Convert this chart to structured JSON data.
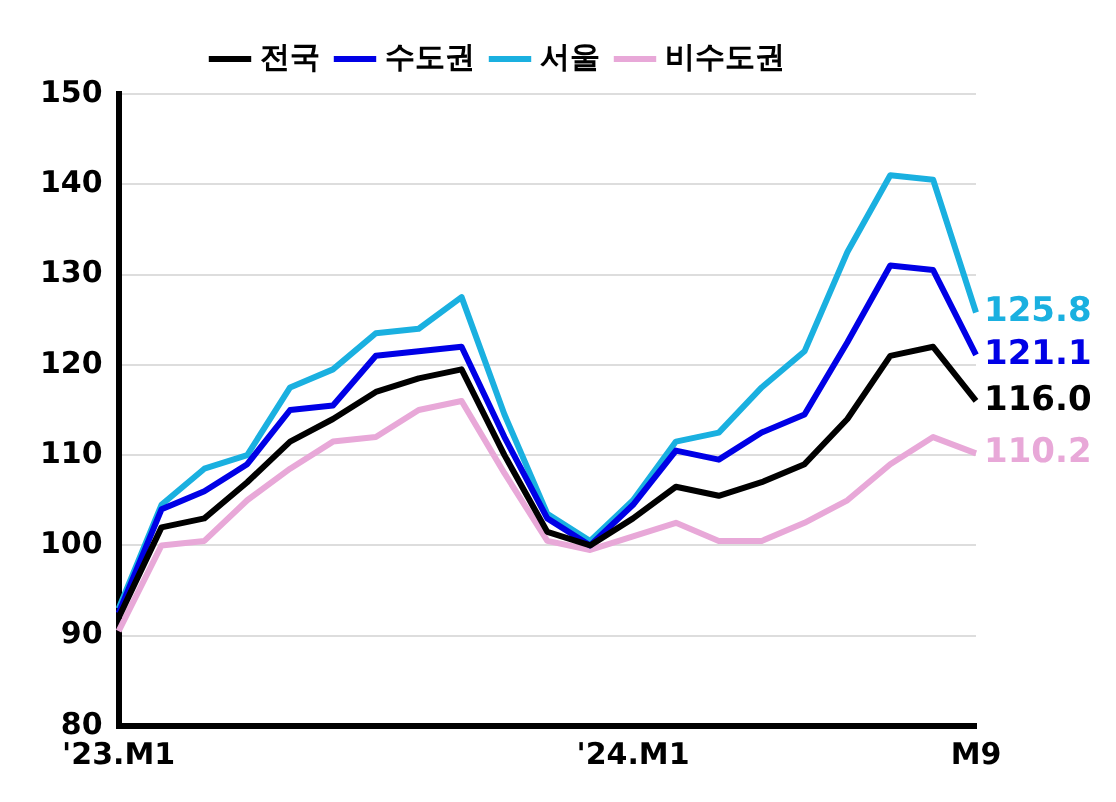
{
  "chart_data": {
    "type": "line",
    "categories": [
      "'23.M1",
      null,
      null,
      null,
      null,
      null,
      null,
      null,
      null,
      null,
      null,
      null,
      "'24.M1",
      null,
      null,
      null,
      null,
      null,
      null,
      null,
      "M9"
    ],
    "series": [
      {
        "name": "전국",
        "color": "#000000",
        "values": [
          92,
          102,
          103,
          107,
          111.5,
          114,
          117,
          118.5,
          119.5,
          110,
          101.5,
          100,
          103,
          106.5,
          105.5,
          107,
          109,
          114,
          121,
          122,
          116.0
        ],
        "value_labels": [
          null,
          null,
          null,
          null,
          null,
          null,
          null,
          null,
          null,
          null,
          null,
          null,
          null,
          null,
          null,
          null,
          null,
          null,
          null,
          null,
          "116.0"
        ]
      },
      {
        "name": "수도권",
        "color": "#0000e6",
        "values": [
          92.5,
          104,
          106,
          109,
          115,
          115.5,
          121,
          121.5,
          122,
          112,
          103,
          100,
          104.5,
          110.5,
          109.5,
          112.5,
          114.5,
          122.5,
          131,
          130.5,
          121.1
        ],
        "value_labels": [
          null,
          null,
          null,
          null,
          null,
          null,
          null,
          null,
          null,
          null,
          null,
          null,
          null,
          null,
          null,
          null,
          null,
          null,
          null,
          null,
          "121.1"
        ]
      },
      {
        "name": "서울",
        "color": "#1ab0e0",
        "values": [
          93,
          104.5,
          108.5,
          110,
          117.5,
          119.5,
          123.5,
          124,
          127.5,
          114.5,
          103.5,
          100.5,
          105,
          111.5,
          112.5,
          117.5,
          121.5,
          132.5,
          141,
          140.5,
          125.8
        ],
        "value_labels": [
          null,
          null,
          null,
          null,
          null,
          null,
          null,
          null,
          null,
          null,
          null,
          null,
          null,
          null,
          null,
          null,
          null,
          null,
          null,
          null,
          "125.8"
        ]
      },
      {
        "name": "비수도권",
        "color": "#e8a8d8",
        "values": [
          90.5,
          100,
          100.5,
          105,
          108.5,
          111.5,
          112,
          115,
          116,
          108,
          100.5,
          99.5,
          101,
          102.5,
          100.5,
          100.5,
          102.5,
          105,
          109,
          112,
          110.2
        ],
        "value_labels": [
          null,
          null,
          null,
          null,
          null,
          null,
          null,
          null,
          null,
          null,
          null,
          null,
          null,
          null,
          null,
          null,
          null,
          null,
          null,
          null,
          "110.2"
        ]
      }
    ],
    "ylim": [
      80,
      150
    ],
    "yticks": [
      80,
      90,
      100,
      110,
      120,
      130,
      140,
      150
    ],
    "grid": "y",
    "legend": "top",
    "marker": "none",
    "line_style": "solid"
  }
}
